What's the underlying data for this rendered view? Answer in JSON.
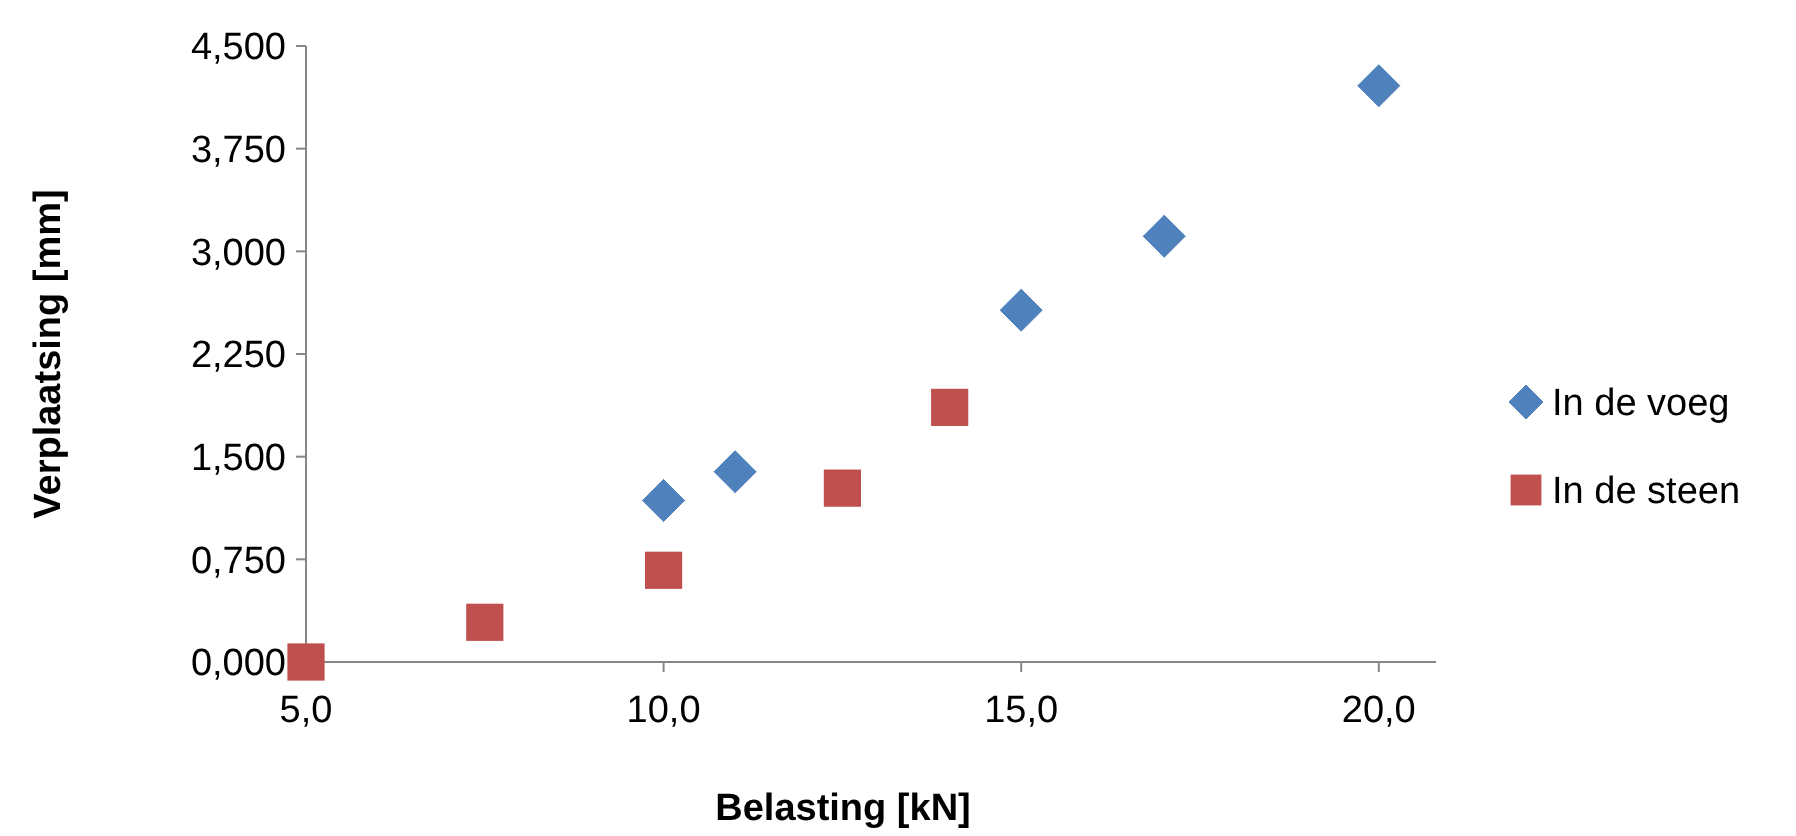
{
  "chart_data": {
    "type": "scatter",
    "xlabel": "Belasting [kN]",
    "ylabel": "Verplaatsing [mm]",
    "xlim": [
      5,
      20.8
    ],
    "ylim": [
      0,
      4.5
    ],
    "xticks": [
      {
        "value": 5,
        "label": "5,0"
      },
      {
        "value": 10,
        "label": "10,0"
      },
      {
        "value": 15,
        "label": "15,0"
      },
      {
        "value": 20,
        "label": "20,0"
      }
    ],
    "yticks": [
      {
        "value": 0,
        "label": "0,000"
      },
      {
        "value": 0.75,
        "label": "0,750"
      },
      {
        "value": 1.5,
        "label": "1,500"
      },
      {
        "value": 2.25,
        "label": "2,250"
      },
      {
        "value": 3,
        "label": "3,000"
      },
      {
        "value": 3.75,
        "label": "3,750"
      },
      {
        "value": 4.5,
        "label": "4,500"
      }
    ],
    "grid": false,
    "legend": "right",
    "series": [
      {
        "name": "In de voeg",
        "color": "#4f81bd",
        "marker": "diamond",
        "x": [
          10,
          11,
          15,
          17,
          20
        ],
        "values": [
          1.18,
          1.39,
          2.57,
          3.11,
          4.21
        ]
      },
      {
        "name": "In de steen",
        "color": "#c0504d",
        "marker": "square",
        "x": [
          5,
          7.5,
          10,
          12.5,
          14
        ],
        "values": [
          0,
          0.29,
          0.67,
          1.27,
          1.86
        ]
      }
    ]
  }
}
